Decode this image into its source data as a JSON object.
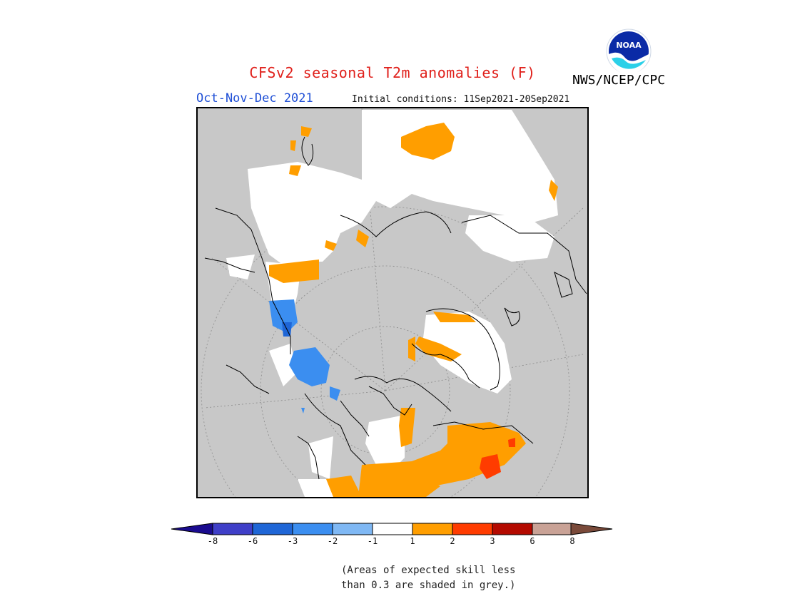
{
  "header": {
    "title": "CFSv2 seasonal T2m anomalies (F)",
    "period": "Oct-Nov-Dec 2021",
    "initial_conditions": "Initial conditions: 11Sep2021-20Sep2021",
    "agency": "NWS/NCEP/CPC",
    "logo_text": "NOAA"
  },
  "legend": {
    "unit": "F",
    "ticks": [
      "-8",
      "-6",
      "-3",
      "-2",
      "-1",
      "1",
      "2",
      "3",
      "6",
      "8"
    ],
    "colors": [
      "#1a0b8f",
      "#3f3fc8",
      "#1f66d6",
      "#3b8ef0",
      "#7fb8f4",
      "#ffffff",
      "#ff9e00",
      "#ff3c00",
      "#b40a00",
      "#c9a296",
      "#7a4a3a"
    ]
  },
  "map": {
    "projection": "polar stereographic (north pole)",
    "background_color": "#c8c8c8",
    "low_skill_color": "#c8c8c8"
  },
  "note": {
    "line1": "(Areas of expected skill less",
    "line2": "than 0.3 are shaded in grey.)"
  }
}
